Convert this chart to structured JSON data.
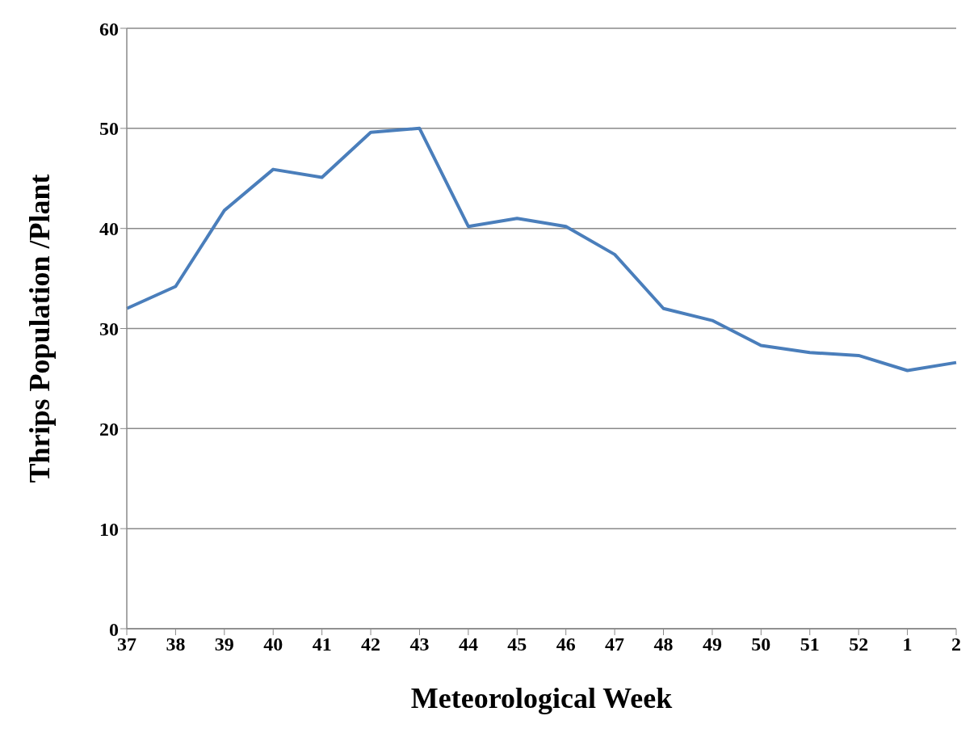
{
  "chart_data": {
    "type": "line",
    "xlabel": "Meteorological Week",
    "ylabel": "Thrips Population /Plant",
    "categories": [
      "37",
      "38",
      "39",
      "40",
      "41",
      "42",
      "43",
      "44",
      "45",
      "46",
      "47",
      "48",
      "49",
      "50",
      "51",
      "52",
      "1",
      "2"
    ],
    "series": [
      {
        "color": "#4a7ebb",
        "values": [
          32.0,
          34.2,
          41.8,
          45.9,
          45.1,
          49.6,
          50.0,
          40.2,
          41.0,
          40.2,
          37.4,
          32.0,
          30.8,
          28.3,
          27.6,
          27.3,
          25.8,
          26.6
        ]
      }
    ],
    "ylim": [
      0,
      60
    ],
    "yticks": [
      0,
      10,
      20,
      30,
      40,
      50,
      60
    ],
    "grid": "y",
    "legend": false,
    "marker": "none",
    "line_style": "solid"
  }
}
